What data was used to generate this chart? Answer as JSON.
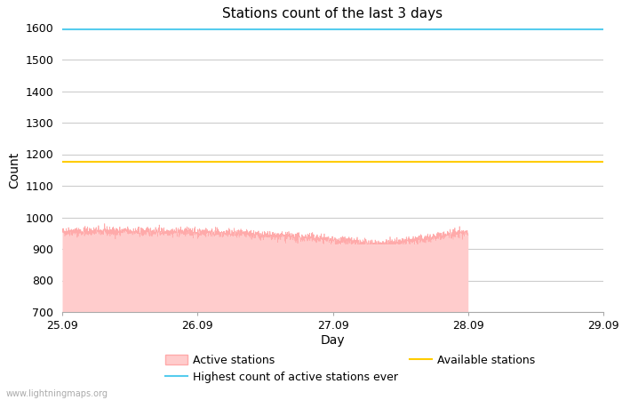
{
  "title": "Stations count of the last 3 days",
  "xlabel": "Day",
  "ylabel": "Count",
  "ylim": [
    700,
    1600
  ],
  "yticks": [
    700,
    800,
    900,
    1000,
    1100,
    1200,
    1300,
    1400,
    1500,
    1600
  ],
  "x_start": 0.0,
  "x_end": 4.0,
  "xtick_positions": [
    0.0,
    1.0,
    2.0,
    3.0,
    4.0
  ],
  "xtick_labels": [
    "25.09",
    "26.09",
    "27.09",
    "28.09",
    "29.09"
  ],
  "highest_ever": 1595,
  "available_stations": 1175,
  "active_fill_color": "#ffcccc",
  "active_line_color": "#ffaaaa",
  "highest_line_color": "#55ccee",
  "available_line_color": "#ffcc00",
  "grid_color": "#cccccc",
  "background_color": "#ffffff",
  "watermark": "www.lightningmaps.org",
  "active_base": 700,
  "active_mean": 955,
  "cutoff_x": 3.0
}
